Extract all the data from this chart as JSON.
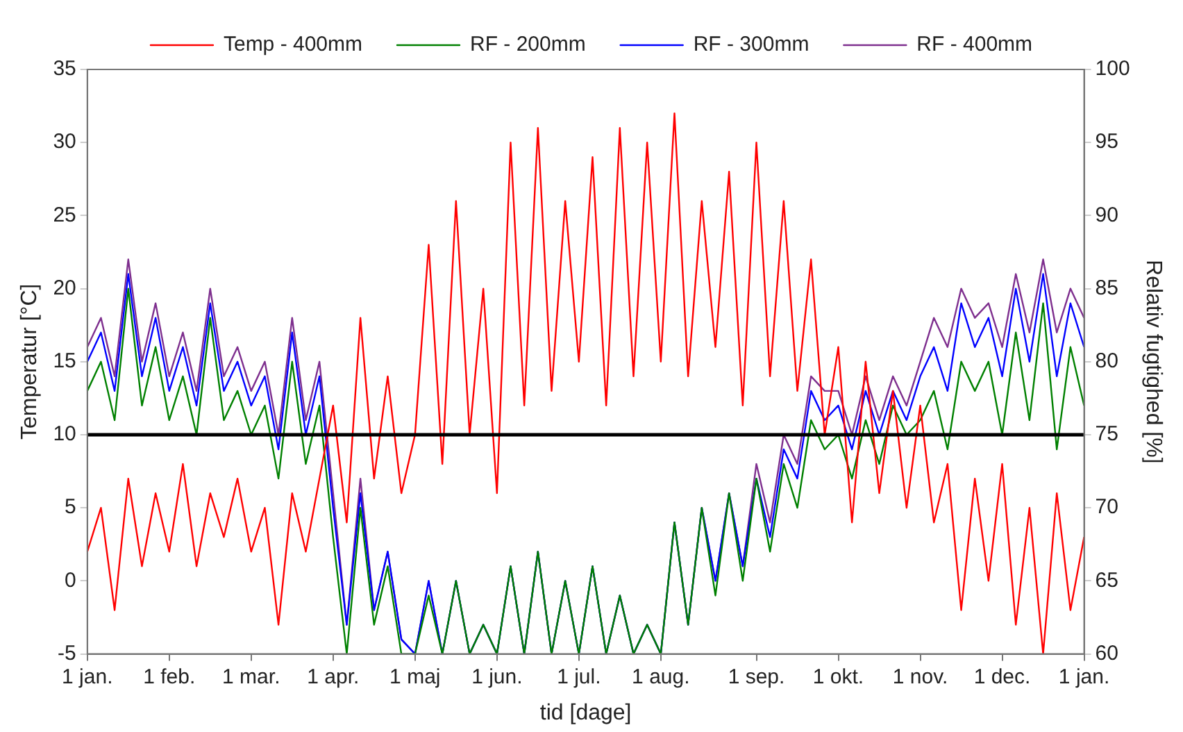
{
  "chart_data": {
    "type": "line",
    "xlabel": "tid [dage]",
    "ylabel": "Temperatur [°C]",
    "y2label": "Relativ fugtighed [%]",
    "categories": [
      "1 jan.",
      null,
      null,
      null,
      null,
      null,
      "1 feb.",
      null,
      null,
      null,
      null,
      null,
      "1 mar.",
      null,
      null,
      null,
      null,
      null,
      "1 apr.",
      null,
      null,
      null,
      null,
      null,
      "1 maj",
      null,
      null,
      null,
      null,
      null,
      "1 jun.",
      null,
      null,
      null,
      null,
      null,
      "1 jul.",
      null,
      null,
      null,
      null,
      null,
      "1 aug.",
      null,
      null,
      null,
      null,
      null,
      null,
      "1 sep.",
      null,
      null,
      null,
      null,
      null,
      "1 okt.",
      null,
      null,
      null,
      null,
      null,
      "1 nov.",
      null,
      null,
      null,
      null,
      null,
      "1 dec.",
      null,
      null,
      null,
      null,
      null,
      "1 jan."
    ],
    "ylim": [
      -5,
      35
    ],
    "yticks": [
      -5,
      0,
      5,
      10,
      15,
      20,
      25,
      30,
      35
    ],
    "y2lim": [
      60,
      100
    ],
    "y2ticks": [
      60,
      65,
      70,
      75,
      80,
      85,
      90,
      95,
      100
    ],
    "legend": "top",
    "grid": false,
    "marker": "none",
    "line_style": "solid",
    "ref_lines": [
      {
        "axis": "y",
        "value": 10,
        "color": "#000000"
      }
    ],
    "series": [
      {
        "name": "Temp - 400mm",
        "color": "#ff0000",
        "values": [
          2,
          5,
          -2,
          7,
          1,
          6,
          2,
          8,
          1,
          6,
          3,
          7,
          2,
          5,
          -3,
          6,
          2,
          7,
          12,
          4,
          18,
          7,
          14,
          6,
          10,
          23,
          8,
          26,
          10,
          20,
          6,
          30,
          12,
          31,
          13,
          26,
          15,
          29,
          12,
          31,
          14,
          30,
          15,
          32,
          14,
          26,
          16,
          28,
          12,
          30,
          14,
          26,
          13,
          22,
          10,
          16,
          4,
          15,
          6,
          13,
          5,
          12,
          4,
          8,
          -2,
          7,
          0,
          8,
          -3,
          5,
          -5,
          6,
          -2,
          3
        ]
      },
      {
        "name": "RF - 200mm",
        "color": "#008000",
        "axis": "y2",
        "values": [
          78,
          80,
          76,
          85,
          77,
          81,
          76,
          79,
          75,
          83,
          76,
          78,
          75,
          77,
          72,
          80,
          73,
          77,
          68,
          60,
          70,
          62,
          66,
          60,
          60,
          64,
          60,
          65,
          60,
          62,
          60,
          66,
          60,
          67,
          60,
          65,
          60,
          66,
          60,
          64,
          60,
          62,
          60,
          69,
          62,
          70,
          64,
          71,
          65,
          72,
          67,
          73,
          70,
          76,
          74,
          75,
          72,
          76,
          73,
          77,
          75,
          76,
          78,
          74,
          80,
          78,
          80,
          75,
          82,
          76,
          84,
          74,
          81,
          77
        ]
      },
      {
        "name": "RF - 300mm",
        "color": "#0000ff",
        "axis": "y2",
        "values": [
          80,
          82,
          78,
          86,
          79,
          83,
          78,
          81,
          77,
          84,
          78,
          80,
          77,
          79,
          74,
          82,
          75,
          79,
          70,
          62,
          71,
          63,
          67,
          61,
          60,
          65,
          60,
          65,
          60,
          62,
          60,
          66,
          60,
          67,
          60,
          65,
          60,
          66,
          60,
          64,
          60,
          62,
          60,
          69,
          62,
          70,
          65,
          71,
          66,
          72,
          68,
          74,
          72,
          78,
          76,
          77,
          74,
          78,
          75,
          78,
          76,
          79,
          81,
          78,
          84,
          81,
          83,
          79,
          85,
          80,
          86,
          79,
          84,
          81
        ]
      },
      {
        "name": "RF - 400mm",
        "color": "#7e2f8e",
        "axis": "y2",
        "values": [
          81,
          83,
          79,
          87,
          80,
          84,
          79,
          82,
          78,
          85,
          79,
          81,
          78,
          80,
          75,
          83,
          76,
          80,
          71,
          62,
          72,
          63,
          67,
          61,
          60,
          65,
          60,
          65,
          60,
          62,
          60,
          66,
          60,
          67,
          60,
          65,
          60,
          66,
          60,
          64,
          60,
          62,
          60,
          69,
          62,
          70,
          65,
          71,
          66,
          73,
          69,
          75,
          73,
          79,
          78,
          78,
          75,
          79,
          76,
          79,
          77,
          80,
          83,
          81,
          85,
          83,
          84,
          81,
          86,
          82,
          87,
          82,
          85,
          83
        ]
      }
    ]
  }
}
